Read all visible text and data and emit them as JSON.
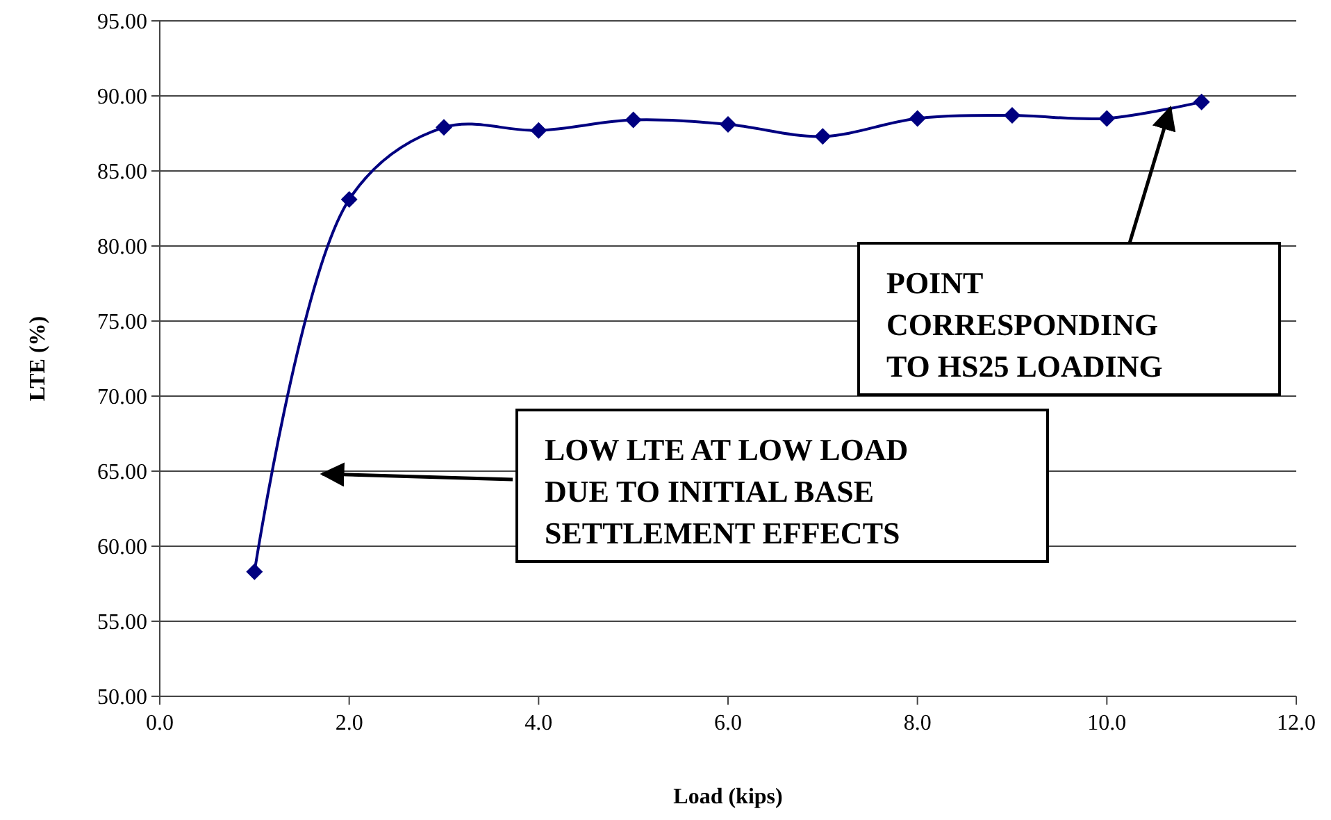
{
  "chart_data": {
    "type": "line",
    "xlabel": "Load (kips)",
    "ylabel": "LTE (%)",
    "x": [
      1,
      2,
      3,
      4,
      5,
      6,
      7,
      8,
      9,
      10,
      11
    ],
    "series": [
      {
        "color": "#000080",
        "values": [
          58.3,
          83.1,
          87.9,
          87.7,
          88.4,
          88.1,
          87.3,
          88.5,
          88.7,
          88.5,
          89.6
        ]
      }
    ],
    "xlim": [
      0,
      12
    ],
    "xticks": [
      {
        "value": 0,
        "label": "0.0"
      },
      {
        "value": 2,
        "label": "2.0"
      },
      {
        "value": 4,
        "label": "4.0"
      },
      {
        "value": 6,
        "label": "6.0"
      },
      {
        "value": 8,
        "label": "8.0"
      },
      {
        "value": 10,
        "label": "10.0"
      },
      {
        "value": 12,
        "label": "12.0"
      }
    ],
    "ylim": [
      50,
      95
    ],
    "yticks": [
      {
        "value": 50,
        "label": "50.00"
      },
      {
        "value": 55,
        "label": "55.00"
      },
      {
        "value": 60,
        "label": "60.00"
      },
      {
        "value": 65,
        "label": "65.00"
      },
      {
        "value": 70,
        "label": "70.00"
      },
      {
        "value": 75,
        "label": "75.00"
      },
      {
        "value": 80,
        "label": "80.00"
      },
      {
        "value": 85,
        "label": "85.00"
      },
      {
        "value": 90,
        "label": "90.00"
      },
      {
        "value": 95,
        "label": "95.00"
      }
    ],
    "grid": "y",
    "marker": "diamond",
    "line_style": "solid",
    "annotations": [
      {
        "text": "POINT CORRESPONDING TO HS25 LOADING",
        "x": 10.67,
        "y": 89.2
      },
      "LOW LTE AT LOW LOAD DUE TO INITIAL BASE SETTLEMENT EFFECTS"
    ]
  }
}
